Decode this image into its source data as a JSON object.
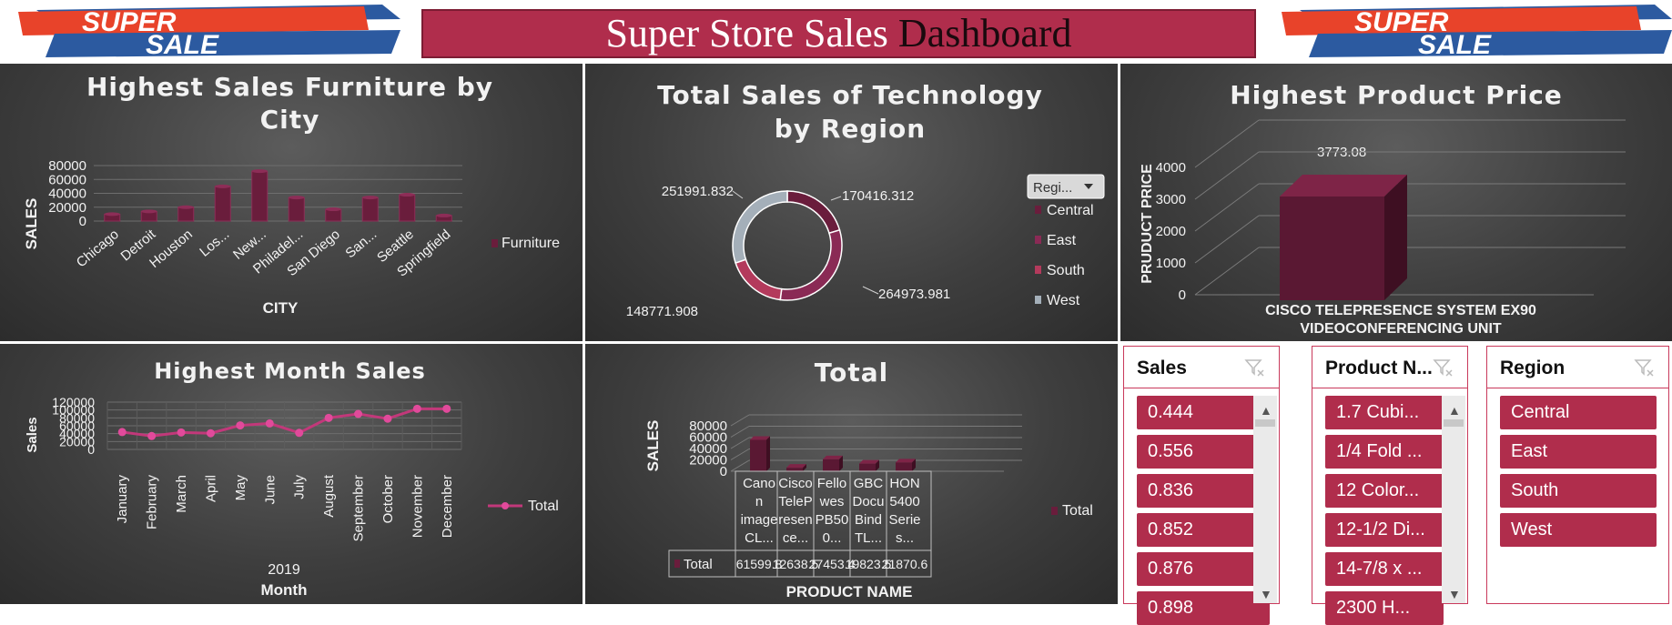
{
  "header": {
    "title_main": "Super Store Sales ",
    "title_dark": "Dashboard"
  },
  "logo": {
    "line1": "SUPER",
    "line2": "SALE"
  },
  "colors": {
    "accent": "#b02d4c",
    "series_dark": "#6a1d3c",
    "line": "#c2387a",
    "label": "#f2f2f2"
  },
  "furniture_chart": {
    "title_line1": "Highest Sales Furniture by",
    "title_line2": "City",
    "ylabel": "SALES",
    "xlabel": "CITY",
    "legend": "Furniture"
  },
  "technology_chart": {
    "title_line1": "Total Sales of Technology",
    "title_line2": "by Region",
    "filter_label": "Regi...",
    "legend": [
      "Central",
      "East",
      "South",
      "West"
    ]
  },
  "price_chart": {
    "title": "Highest Product Price",
    "ylabel": "PRUDUCT PRICE",
    "xlabel_line1": "CISCO TELEPRESENCE SYSTEM EX90",
    "xlabel_line2": "VIDEOCONFERENCING UNIT",
    "value_label": "3773.08"
  },
  "month_chart": {
    "title": "Highest Month Sales",
    "ylabel": "Sales",
    "year": "2019",
    "xlabel": "Month",
    "legend": "Total"
  },
  "total_chart": {
    "title": "Total",
    "ylabel": "SALES",
    "xlabel": "PRODUCT NAME",
    "legend": "Total",
    "row_label": "Total",
    "categories": [
      [
        "Cano",
        "n",
        "image",
        "CL..."
      ],
      [
        "Cisco",
        "TeleP",
        "resen",
        "ce..."
      ],
      [
        "Fello",
        "wes",
        "PB50",
        "0..."
      ],
      [
        "GBC",
        "Docu",
        "Bind",
        "TL..."
      ],
      [
        "HON",
        "5400",
        "Serie",
        "s..."
      ]
    ],
    "table_values": [
      "61599.8",
      "12638.5",
      "27453.4",
      "19823.5",
      "21870.6"
    ]
  },
  "chart_data": [
    {
      "type": "bar",
      "title": "Highest Sales Furniture by City",
      "xlabel": "CITY",
      "ylabel": "SALES",
      "ylim": [
        0,
        80000
      ],
      "yticks": [
        0,
        20000,
        40000,
        60000,
        80000
      ],
      "categories": [
        "Chicago",
        "Detroit",
        "Houston",
        "Los...",
        "New...",
        "Philadel...",
        "San Diego",
        "San...",
        "Seattle",
        "Springfield"
      ],
      "series": [
        {
          "name": "Furniture",
          "values": [
            10000,
            14000,
            20000,
            50000,
            72000,
            34000,
            17000,
            34000,
            38000,
            8000
          ]
        }
      ],
      "legend": "right"
    },
    {
      "type": "pie",
      "title": "Total Sales of Technology by Region",
      "categories": [
        "Central",
        "East",
        "South",
        "West"
      ],
      "values": [
        170416.312,
        264973.981,
        148771.908,
        251991.832
      ],
      "labels": [
        "170416.312",
        "264973.981",
        "148771.908",
        "251991.832"
      ],
      "colors": [
        "#6a1d3c",
        "#8a2a55",
        "#b33a5c",
        "#a4afb9"
      ],
      "legend": "right"
    },
    {
      "type": "bar",
      "title": "Highest Product Price",
      "ylabel": "PRUDUCT PRICE",
      "categories": [
        "CISCO TELEPRESENCE SYSTEM EX90 VIDEOCONFERENCING UNIT"
      ],
      "values": [
        3773.08
      ],
      "ylim": [
        0,
        4000
      ],
      "yticks": [
        0,
        1000,
        2000,
        3000,
        4000
      ]
    },
    {
      "type": "line",
      "title": "Highest Month Sales",
      "xlabel": "Month",
      "ylabel": "Sales",
      "ylim": [
        0,
        120000
      ],
      "yticks": [
        0,
        20000,
        40000,
        60000,
        80000,
        100000,
        120000
      ],
      "categories": [
        "January",
        "February",
        "March",
        "April",
        "May",
        "June",
        "July",
        "August",
        "September",
        "October",
        "November",
        "December"
      ],
      "series": [
        {
          "name": "Total",
          "values": [
            44000,
            34000,
            43000,
            41000,
            61000,
            66000,
            42000,
            80000,
            90000,
            78000,
            103000,
            103000
          ]
        }
      ],
      "legend": "right"
    },
    {
      "type": "bar",
      "title": "Total",
      "xlabel": "PRODUCT NAME",
      "ylabel": "SALES",
      "ylim": [
        0,
        80000
      ],
      "yticks": [
        0,
        20000,
        40000,
        60000,
        80000
      ],
      "categories": [
        "Canon image CL...",
        "Cisco TelePresence...",
        "Fellowes PB500...",
        "GBC DocuBind TL...",
        "HON 5400 Series..."
      ],
      "series": [
        {
          "name": "Total",
          "values": [
            61599.8,
            12638.5,
            27453.4,
            19823.5,
            21870.6
          ]
        }
      ],
      "legend": "right"
    }
  ],
  "slicers": {
    "sales": {
      "title": "Sales",
      "items": [
        "0.444",
        "0.556",
        "0.836",
        "0.852",
        "0.876",
        "0.898"
      ]
    },
    "product": {
      "title": "Product N...",
      "items": [
        "1.7 Cubi...",
        "1/4 Fold ...",
        "12 Color...",
        "12-1/2 Di...",
        "14-7/8 x ...",
        "2300 H..."
      ]
    },
    "region": {
      "title": "Region",
      "items": [
        "Central",
        "East",
        "South",
        "West"
      ]
    }
  }
}
